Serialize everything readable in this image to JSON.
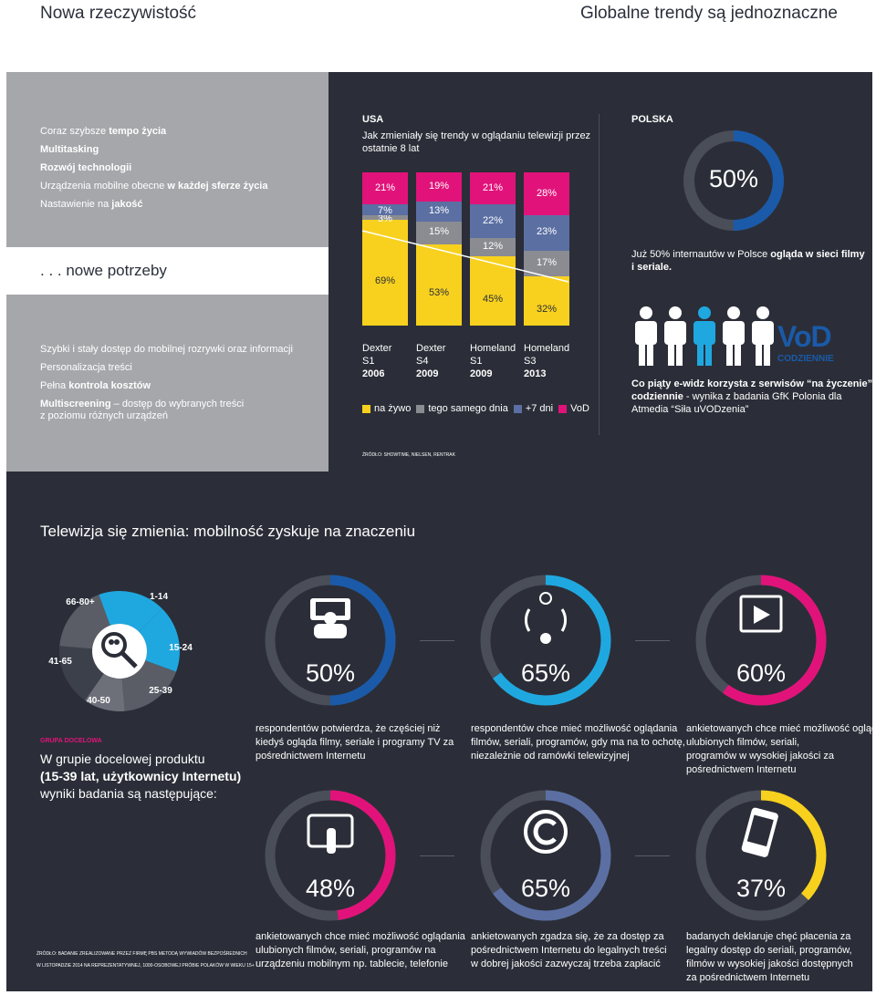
{
  "header": {
    "left": "Nowa rzeczywistość",
    "right": "Globalne trendy są jednoznaczne"
  },
  "trends": [
    {
      "pre": "Coraz szybsze ",
      "bold": "tempo życia",
      "post": ""
    },
    {
      "pre": "",
      "bold": "Multitasking",
      "post": ""
    },
    {
      "pre": "",
      "bold": "Rozwój technologii",
      "post": ""
    },
    {
      "pre": "Urządzenia mobilne obecne ",
      "bold": "w każdej sferze życia",
      "post": ""
    },
    {
      "pre": "Nastawienie na ",
      "bold": "jakość",
      "post": ""
    }
  ],
  "needs_title": ". . . nowe potrzeby",
  "needs": [
    {
      "pre": "Szybki i stały dostęp do mobilnej rozrywki oraz informacji",
      "bold": "",
      "post": ""
    },
    {
      "pre": "Personalizacja treści",
      "bold": "",
      "post": ""
    },
    {
      "pre": "Pełna ",
      "bold": "kontrola kosztów",
      "post": ""
    },
    {
      "pre": "",
      "bold": "Multiscreening",
      "post": " – dostęp do wybranych treści"
    },
    {
      "pre": "z poziomu różnych urządzeń",
      "bold": "",
      "post": ""
    }
  ],
  "usa": {
    "title": "USA",
    "subtitle1": "Jak zmieniały się trendy w oglądaniu telewizji przez",
    "subtitle2": "ostatnie 8 lat",
    "source": "ŹRÓDŁO: SHOWTIME, NIELSEN, RENTRAK"
  },
  "chart_data": {
    "type": "bar",
    "stacked": true,
    "categories": [
      "Dexter S1 2006",
      "Dexter S4 2009",
      "Homeland S1 2009",
      "Homeland S3 2013"
    ],
    "category_lines": [
      [
        "Dexter",
        "S1",
        "2006"
      ],
      [
        "Dexter",
        "S4",
        "2009"
      ],
      [
        "Homeland",
        "S1",
        "2009"
      ],
      [
        "Homeland",
        "S3",
        "2013"
      ]
    ],
    "series": [
      {
        "name": "na żywo",
        "color": "#f7d11e",
        "values": [
          69,
          53,
          45,
          32
        ]
      },
      {
        "name": "tego samego dnia",
        "color": "#8a8c91",
        "values": [
          3,
          15,
          12,
          17
        ]
      },
      {
        "name": "+7 dni",
        "color": "#5b6fa3",
        "values": [
          7,
          13,
          22,
          23
        ]
      },
      {
        "name": "VoD",
        "color": "#e1137a",
        "values": [
          21,
          19,
          21,
          28
        ]
      }
    ],
    "ylim": [
      0,
      100
    ]
  },
  "polska": {
    "title": "POLSKA",
    "pct": "50%",
    "pct_value": 50,
    "line1_pre": "Już 50% internautów w Polsce ",
    "line1_bold": "ogląda w sieci filmy",
    "line2_bold": "i seriale.",
    "vod_logo": "VoD",
    "vod_sub": "CODZIENNIE",
    "vod_text1": "Co piąty e-widz korzysta z serwisów “na życzenie”",
    "vod_text2_bold": "codziennie",
    "vod_text2": " - wynika z badania GfK Polonia dla",
    "vod_text3": "Atmedia “Siła uVODzenia”"
  },
  "section2_title": "Telewizja się zmienia: mobilność zyskuje na znaczeniu",
  "age_donut": {
    "segments": [
      {
        "label": "66-80+",
        "color": "#3c404b"
      },
      {
        "label": "1-14",
        "color": "#5a5d66"
      },
      {
        "label": "15-24",
        "color": "#1fa8e0"
      },
      {
        "label": "25-39",
        "color": "#1fa8e0"
      },
      {
        "label": "40-50",
        "color": "#5a5d66"
      },
      {
        "label": "41-65",
        "color": "#6d7079"
      }
    ]
  },
  "target": {
    "tag": "GRUPA DOCELOWA",
    "l1": "W grupie docelowej produktu",
    "l2": "(15-39 lat, użytkownicy Internetu)",
    "l3": "wyniki badania są następujące:"
  },
  "stats": [
    {
      "pct": "50%",
      "value": 50,
      "color": "#1a5aa8",
      "icon": "group-laptop-icon",
      "lines": [
        "respondentów potwierdza, że częściej niż",
        "kiedyś ogląda filmy, seriale i programy TV za",
        "pośrednictwem Internetu"
      ]
    },
    {
      "pct": "65%",
      "value": 65,
      "color": "#1fa8e0",
      "icon": "day-night-cycle-icon",
      "lines": [
        "respondentów chce mieć możliwość oglądania",
        "filmów, seriali, programów, gdy ma na to ochotę,",
        "niezależnie od ramówki telewizyjnej"
      ]
    },
    {
      "pct": "60%",
      "value": 60,
      "color": "#e1137a",
      "icon": "video-player-icon",
      "lines": [
        "ankietowanych chce mieć możliwość oglądania",
        "ulubionych filmów, seriali,",
        "programów w wysokiej jakości za",
        "pośrednictwem Internetu"
      ]
    },
    {
      "pct": "48%",
      "value": 48,
      "color": "#e1137a",
      "icon": "tablet-touch-icon",
      "lines": [
        "ankietowanych chce mieć możliwość oglądania",
        "ulubionych filmów, seriali, programów na",
        "urządzeniu mobilnym np. tablecie, telefonie"
      ]
    },
    {
      "pct": "65%",
      "value": 65,
      "color": "#5b6fa3",
      "icon": "copyright-icon",
      "lines": [
        "ankietowanych zgadza się, że za dostęp za",
        "pośrednictwem Internetu do legalnych treści",
        "w dobrej jakości zazwyczaj trzeba zapłacić"
      ]
    },
    {
      "pct": "37%",
      "value": 37,
      "color": "#f7d11e",
      "icon": "phone-money-icon",
      "lines": [
        "badanych deklaruje chęć płacenia za",
        "legalny dostęp do seriali, programów,",
        "filmów w wysokiej jakości dostępnych",
        "za pośrednictwem Internetu"
      ]
    }
  ],
  "footer_source1": "ŹRÓDŁO: BADANIE ZREALIZOWANE PRZEZ FIRMĘ PBS METODĄ WYWIADÓW BEZPOŚREDNICH",
  "footer_source2": "W LISTOPADZIE 2014 NA REPREZENTATYWNEJ, 1000-OSOBOWEJ PRÓBIE POLAKÓW W WIEKU 15+"
}
